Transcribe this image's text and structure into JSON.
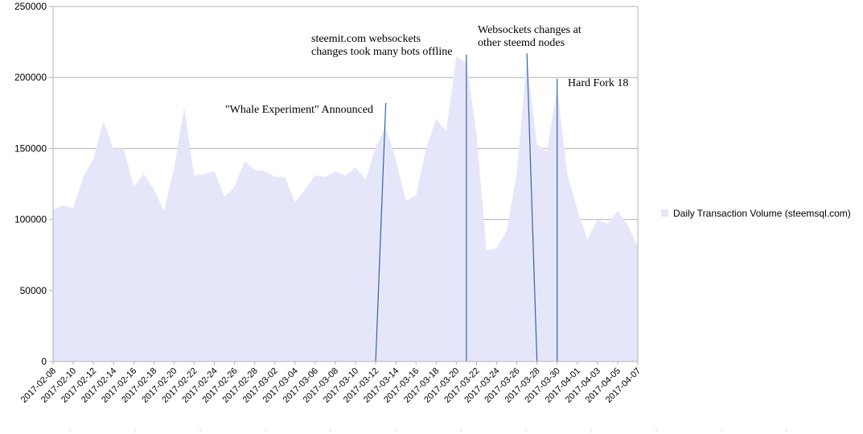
{
  "chart_data": {
    "type": "area",
    "ylim": [
      0,
      250000
    ],
    "yticks": [
      0,
      50000,
      100000,
      150000,
      200000,
      250000
    ],
    "ytick_labels": [
      "0",
      "50000",
      "100000",
      "150000",
      "200000",
      "250000"
    ],
    "grid": "horizontal",
    "legend_position": "right",
    "area_color": "#e6e6fa",
    "annotation_line_color": "#3465a4",
    "x": [
      "2017-02-08",
      "2017-02-09",
      "2017-02-10",
      "2017-02-11",
      "2017-02-12",
      "2017-02-13",
      "2017-02-14",
      "2017-02-15",
      "2017-02-16",
      "2017-02-17",
      "2017-02-18",
      "2017-02-19",
      "2017-02-20",
      "2017-02-21",
      "2017-02-22",
      "2017-02-23",
      "2017-02-24",
      "2017-02-25",
      "2017-02-26",
      "2017-02-27",
      "2017-02-28",
      "2017-03-01",
      "2017-03-02",
      "2017-03-03",
      "2017-03-04",
      "2017-03-05",
      "2017-03-06",
      "2017-03-07",
      "2017-03-08",
      "2017-03-09",
      "2017-03-10",
      "2017-03-11",
      "2017-03-12",
      "2017-03-13",
      "2017-03-14",
      "2017-03-15",
      "2017-03-16",
      "2017-03-17",
      "2017-03-18",
      "2017-03-19",
      "2017-03-20",
      "2017-03-21",
      "2017-03-22",
      "2017-03-23",
      "2017-03-24",
      "2017-03-25",
      "2017-03-26",
      "2017-03-27",
      "2017-03-28",
      "2017-03-29",
      "2017-03-30",
      "2017-03-31",
      "2017-04-01",
      "2017-04-02",
      "2017-04-03",
      "2017-04-04",
      "2017-04-05",
      "2017-04-06",
      "2017-04-07"
    ],
    "xtick_labels": [
      "2017-02-08",
      "2017-02-10",
      "2017-02-12",
      "2017-02-14",
      "2017-02-16",
      "2017-02-18",
      "2017-02-20",
      "2017-02-22",
      "2017-02-24",
      "2017-02-26",
      "2017-02-28",
      "2017-03-02",
      "2017-03-04",
      "2017-03-06",
      "2017-03-08",
      "2017-03-10",
      "2017-03-12",
      "2017-03-14",
      "2017-03-16",
      "2017-03-18",
      "2017-03-20",
      "2017-03-22",
      "2017-03-24",
      "2017-03-26",
      "2017-03-28",
      "2017-03-30",
      "2017-04-01",
      "2017-04-03",
      "2017-04-05",
      "2017-04-07"
    ],
    "series": [
      {
        "name": "Daily Transaction Volume (steemsql.com)",
        "values": [
          107000,
          110000,
          108000,
          130000,
          143000,
          169000,
          150000,
          150000,
          123000,
          132000,
          121000,
          106000,
          136000,
          179000,
          131000,
          132000,
          134000,
          116000,
          123000,
          141000,
          135000,
          134000,
          130000,
          130000,
          112000,
          121000,
          131000,
          130000,
          134000,
          131000,
          137000,
          128000,
          151000,
          165000,
          142000,
          113000,
          117000,
          150000,
          171000,
          162000,
          215000,
          210000,
          160000,
          78000,
          80000,
          92000,
          133000,
          213000,
          153000,
          148000,
          193000,
          132000,
          107000,
          86000,
          100000,
          97000,
          106000,
          96000,
          81000
        ]
      }
    ],
    "annotations": [
      {
        "text": [
          "\"Whale Experiment\" Announced"
        ],
        "line_from": [
          "2017-03-12",
          0
        ],
        "line_to": [
          "2017-03-13",
          182000
        ],
        "text_anchor": "end"
      },
      {
        "text": [
          "steemit.com websockets",
          "changes took many bots offline"
        ],
        "line_from": [
          "2017-03-21",
          0
        ],
        "line_to": [
          "2017-03-21",
          216000
        ],
        "text_anchor": "start"
      },
      {
        "text": [
          "Websockets changes at",
          "other steemd nodes"
        ],
        "line_from": [
          "2017-03-28",
          0
        ],
        "line_to": [
          "2017-03-27",
          217000
        ],
        "text_anchor": "start"
      },
      {
        "text": [
          "Hard Fork 18"
        ],
        "line_from": [
          "2017-03-30",
          0
        ],
        "line_to": [
          "2017-03-30",
          199000
        ],
        "text_anchor": "start"
      }
    ]
  }
}
